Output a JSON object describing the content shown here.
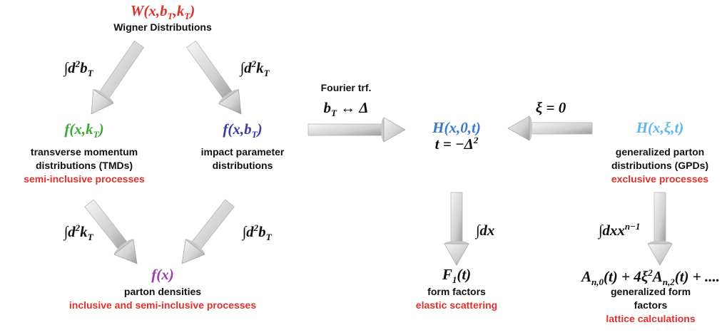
{
  "nodes": [
    {
      "formula": [
        "W(x,b",
        {
          "sub": "T"
        },
        ",k",
        {
          "sub": "T"
        },
        ")"
      ],
      "color": "#e0302a",
      "lines": [
        "Wigner Distributions"
      ]
    },
    {
      "formula": [
        "f(x,k",
        {
          "sub": "T"
        },
        ")"
      ],
      "color": "#3aaa35",
      "lines": [
        "transverse momentum",
        "distributions (TMDs)"
      ],
      "process": "semi-inclusive processes"
    },
    {
      "formula": [
        "f(x,b",
        {
          "sub": "T"
        },
        ")"
      ],
      "color": "#3b3ba8",
      "lines": [
        "impact parameter",
        "distributions"
      ]
    },
    {
      "formula": [
        "f(x)"
      ],
      "color": "#9b3fa8",
      "lines": [
        "parton densities"
      ],
      "process": "inclusive and semi-inclusive processes"
    },
    {
      "formula": [
        "H(x,0,t)"
      ],
      "color": "#3a78c8",
      "formula2": [
        "t = −Δ",
        {
          "sup": "2"
        }
      ]
    },
    {
      "formula": [
        "H(x,ξ,t)"
      ],
      "color": "#5db8e8",
      "lines": [
        "generalized parton",
        "distributions (GPDs)"
      ],
      "process": "exclusive processes"
    },
    {
      "formula": [
        "F",
        {
          "sub": "1"
        },
        "(t)"
      ],
      "color": "#111111",
      "lines": [
        "form factors"
      ],
      "process": "elastic scattering"
    },
    {
      "formula": [
        "A",
        {
          "sub": "n,0"
        },
        "(t) + 4ξ",
        {
          "sup": "2"
        },
        "A",
        {
          "sub": "n,2"
        },
        "(t) + ...."
      ],
      "color": "#111111",
      "lines": [
        "generalized form",
        "factors"
      ],
      "process": "lattice calculations"
    }
  ],
  "edges": [
    {
      "label": [
        "∫d",
        {
          "sup": "2"
        },
        "b",
        {
          "sub": "T"
        }
      ]
    },
    {
      "label": [
        "∫d",
        {
          "sup": "2"
        },
        "k",
        {
          "sub": "T"
        }
      ]
    },
    {
      "label": [
        "∫d",
        {
          "sup": "2"
        },
        "k",
        {
          "sub": "T"
        }
      ]
    },
    {
      "label": [
        "∫d",
        {
          "sup": "2"
        },
        "b",
        {
          "sub": "T"
        }
      ]
    },
    {
      "title": "Fourier trf.",
      "label": [
        "b",
        {
          "sub": "T"
        },
        " ↔ Δ"
      ]
    },
    {
      "label": [
        "ξ = 0"
      ]
    },
    {
      "label": [
        "∫dx"
      ]
    },
    {
      "label": [
        "∫dxx",
        {
          "sup": "n−1"
        }
      ]
    }
  ]
}
